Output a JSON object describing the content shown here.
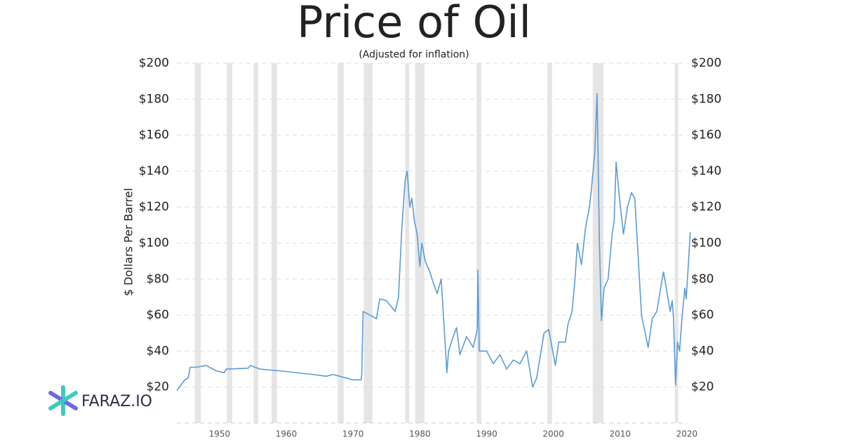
{
  "chart_data": {
    "type": "line",
    "title": "Price of Oil",
    "subtitle": "(Adjusted for inflation)",
    "y_label": "$ Dollars Per Barrel",
    "logo_text": "FARAZ.IO",
    "color": "#5b9bd5",
    "band_color": "#e5e5e5",
    "grid": true,
    "x": [
      1943.6,
      1944.2,
      1944.8,
      1945.3,
      1945.6,
      1946.5,
      1948,
      1949.5,
      1950.7,
      1951,
      1954.3,
      1954.6,
      1956,
      1959,
      1964,
      1966,
      1967,
      1970,
      1971.2,
      1971.3,
      1971.5,
      1972.5,
      1973.5,
      1974,
      1975,
      1976.3,
      1976.8,
      1977.3,
      1977.8,
      1978.1,
      1978.5,
      1978.8,
      1979.2,
      1979.6,
      1980.0,
      1980.3,
      1980.8,
      1981.5,
      1982,
      1982.6,
      1983.2,
      1984.05,
      1984.3,
      1985,
      1985.5,
      1986,
      1987,
      1988,
      1988.6,
      1988.7,
      1988.9,
      1990,
      1991,
      1992,
      1993,
      1994,
      1995,
      1996,
      1996.9,
      1997.5,
      1998.6,
      1999.3,
      2000.3,
      2000.8,
      2001.8,
      2002.2,
      2002.8,
      2003.2,
      2003.6,
      2004.2,
      2004.8,
      2005.4,
      2005.7,
      2006.2,
      2006.55,
      2006.9,
      2007.2,
      2007.6,
      2008.2,
      2008.8,
      2009.1,
      2009.4,
      2009.9,
      2010.5,
      2011.1,
      2011.7,
      2012.2,
      2013.2,
      2014.2,
      2014.8,
      2015.5,
      2016.2,
      2016.5,
      2017.5,
      2017.8,
      2018.0,
      2018.3,
      2018.6,
      2018.9,
      2019.3,
      2019.7,
      2019.9,
      2020.2,
      2020.5
    ],
    "values": [
      18,
      21,
      24,
      25,
      31,
      31,
      32,
      29,
      28,
      30,
      30.5,
      32,
      30,
      29,
      27,
      26,
      27,
      24,
      24,
      27,
      62,
      60,
      58,
      69,
      68,
      62,
      70,
      108,
      135,
      140,
      120,
      125,
      112,
      105,
      87,
      100,
      90,
      84,
      78,
      72,
      80,
      28,
      40,
      48,
      53,
      38,
      48,
      42,
      52,
      85,
      40,
      40,
      33,
      38,
      30,
      35,
      33,
      40,
      20,
      25,
      50,
      52,
      32,
      45,
      45,
      55,
      62,
      78,
      100,
      88,
      108,
      120,
      130,
      150,
      183,
      100,
      57,
      75,
      80,
      105,
      112,
      145,
      125,
      105,
      120,
      128,
      125,
      60,
      42,
      58,
      62,
      78,
      84,
      62,
      68,
      58,
      21,
      45,
      40,
      60,
      75,
      69,
      87,
      106
    ],
    "recession_bands": [
      [
        1946.3,
        1947.2
      ],
      [
        1951.1,
        1951.9
      ],
      [
        1955.1,
        1955.8
      ],
      [
        1957.8,
        1958.6
      ],
      [
        1967.7,
        1968.6
      ],
      [
        1971.6,
        1972.9
      ],
      [
        1977.8,
        1978.4
      ],
      [
        1979.3,
        1980.7
      ],
      [
        1988.5,
        1989.2
      ],
      [
        1999.1,
        1999.8
      ],
      [
        2005.9,
        2007.5
      ],
      [
        2018.2,
        2018.7
      ]
    ],
    "xlim": [
      1943.6,
      2020.7
    ],
    "xticks": [
      1950,
      1960,
      1970,
      1980,
      1990,
      2000,
      2010,
      2020
    ],
    "ylim": [
      0,
      200
    ],
    "yticks": [
      {
        "value": 20,
        "label": "$20"
      },
      {
        "value": 40,
        "label": "$40"
      },
      {
        "value": 60,
        "label": "$60"
      },
      {
        "value": 80,
        "label": "$80"
      },
      {
        "value": 100,
        "label": "$100"
      },
      {
        "value": 120,
        "label": "$120"
      },
      {
        "value": 140,
        "label": "$140"
      },
      {
        "value": 160,
        "label": "$160"
      },
      {
        "value": 180,
        "label": "$180"
      },
      {
        "value": 200,
        "label": "$200"
      }
    ],
    "y2lim": [
      0,
      200
    ],
    "y2ticks": [
      {
        "value": 20,
        "label": "$20"
      },
      {
        "value": 40,
        "label": "$40"
      },
      {
        "value": 60,
        "label": "$60"
      },
      {
        "value": 80,
        "label": "$80"
      },
      {
        "value": 100,
        "label": "$100"
      },
      {
        "value": 120,
        "label": "$120"
      },
      {
        "value": 140,
        "label": "$140"
      },
      {
        "value": 160,
        "label": "$160"
      },
      {
        "value": 180,
        "label": "$180"
      },
      {
        "value": 200,
        "label": "$200"
      }
    ]
  }
}
